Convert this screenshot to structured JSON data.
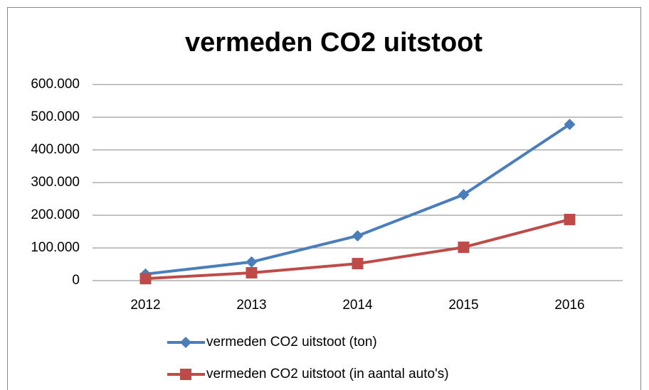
{
  "chart_data": {
    "type": "line",
    "title": "vermeden CO2 uitstoot",
    "categories": [
      "2012",
      "2013",
      "2014",
      "2015",
      "2016"
    ],
    "series": [
      {
        "name": "vermeden CO2 uitstoot (ton)",
        "color": "#4a7ebb",
        "marker": "diamond",
        "values": [
          20000,
          57000,
          137000,
          263000,
          478000
        ]
      },
      {
        "name": "vermeden CO2 uitstoot (in aantal auto's)",
        "color": "#be4b48",
        "marker": "square",
        "values": [
          6000,
          24000,
          52000,
          102000,
          187000
        ]
      }
    ],
    "ylim": [
      0,
      600000
    ],
    "yticks": [
      0,
      {
        "value": 100000,
        "label": "100.000"
      },
      {
        "value": 200000,
        "label": "200.000"
      },
      {
        "value": 300000,
        "label": "300.000"
      },
      {
        "value": 400000,
        "label": "400.000"
      },
      {
        "value": 500000,
        "label": "500.000"
      },
      {
        "value": 600000,
        "label": "600.000"
      }
    ],
    "grid": true,
    "legend": "bottom"
  }
}
